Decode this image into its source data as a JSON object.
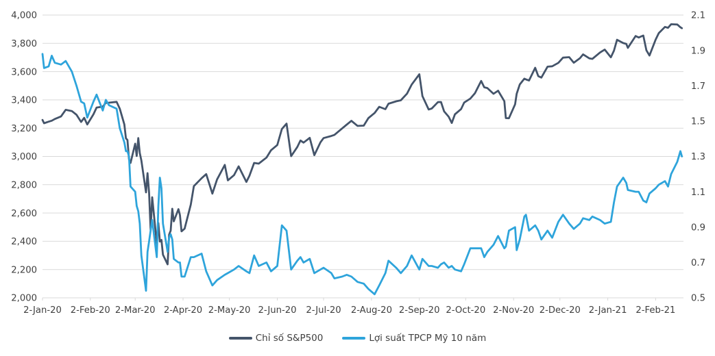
{
  "chart_data": {
    "type": "line",
    "title": "",
    "grid": true,
    "legend_position": "bottom",
    "background_color": "#FFFFFF",
    "grid_color": "#D9D9D9",
    "text_color": "#404040",
    "left_axis": {
      "min": 2000,
      "max": 4000,
      "step": 200,
      "labels": [
        "4,000",
        "3,800",
        "3,600",
        "3,400",
        "3,200",
        "3,000",
        "2,800",
        "2,600",
        "2,400",
        "2,200",
        "2,000"
      ]
    },
    "right_axis": {
      "min": 0.5,
      "max": 2.1,
      "step": 0.2,
      "labels": [
        "2.1",
        "1.9",
        "1.7",
        "1.5",
        "1.3",
        "1.1",
        "0.9",
        "0.7",
        "0.5"
      ]
    },
    "x_axis": {
      "start_date": "2020-01-02",
      "end_date": "2021-02-20",
      "ticks": [
        {
          "date": "2020-01-02",
          "label": "2-Jan-20"
        },
        {
          "date": "2020-02-02",
          "label": "2-Feb-20"
        },
        {
          "date": "2020-03-02",
          "label": "2-Mar-20"
        },
        {
          "date": "2020-04-02",
          "label": "2-Apr-20"
        },
        {
          "date": "2020-05-02",
          "label": "2-May-20"
        },
        {
          "date": "2020-06-02",
          "label": "2-Jun-20"
        },
        {
          "date": "2020-07-02",
          "label": "2-Jul-20"
        },
        {
          "date": "2020-08-02",
          "label": "2-Aug-20"
        },
        {
          "date": "2020-09-02",
          "label": "2-Sep-20"
        },
        {
          "date": "2020-10-02",
          "label": "2-Oct-20"
        },
        {
          "date": "2020-11-02",
          "label": "2-Nov-20"
        },
        {
          "date": "2020-12-02",
          "label": "2-Dec-20"
        },
        {
          "date": "2021-01-02",
          "label": "2-Jan-21"
        },
        {
          "date": "2021-02-02",
          "label": "2-Feb-21"
        }
      ]
    },
    "dates": [
      "2020-01-02",
      "2020-01-03",
      "2020-01-06",
      "2020-01-08",
      "2020-01-10",
      "2020-01-14",
      "2020-01-17",
      "2020-01-21",
      "2020-01-24",
      "2020-01-27",
      "2020-01-29",
      "2020-01-31",
      "2020-02-04",
      "2020-02-06",
      "2020-02-10",
      "2020-02-12",
      "2020-02-14",
      "2020-02-19",
      "2020-02-21",
      "2020-02-24",
      "2020-02-25",
      "2020-02-26",
      "2020-02-27",
      "2020-02-28",
      "2020-03-02",
      "2020-03-03",
      "2020-03-04",
      "2020-03-05",
      "2020-03-06",
      "2020-03-09",
      "2020-03-10",
      "2020-03-11",
      "2020-03-12",
      "2020-03-13",
      "2020-03-16",
      "2020-03-17",
      "2020-03-18",
      "2020-03-19",
      "2020-03-20",
      "2020-03-23",
      "2020-03-24",
      "2020-03-25",
      "2020-03-26",
      "2020-03-27",
      "2020-03-30",
      "2020-03-31",
      "2020-04-01",
      "2020-04-03",
      "2020-04-07",
      "2020-04-09",
      "2020-04-14",
      "2020-04-17",
      "2020-04-21",
      "2020-04-24",
      "2020-04-29",
      "2020-05-01",
      "2020-05-05",
      "2020-05-08",
      "2020-05-13",
      "2020-05-15",
      "2020-05-18",
      "2020-05-21",
      "2020-05-26",
      "2020-05-29",
      "2020-06-02",
      "2020-06-05",
      "2020-06-08",
      "2020-06-11",
      "2020-06-15",
      "2020-06-17",
      "2020-06-19",
      "2020-06-23",
      "2020-06-26",
      "2020-06-30",
      "2020-07-02",
      "2020-07-07",
      "2020-07-09",
      "2020-07-14",
      "2020-07-17",
      "2020-07-20",
      "2020-07-24",
      "2020-07-28",
      "2020-07-31",
      "2020-08-04",
      "2020-08-07",
      "2020-08-11",
      "2020-08-13",
      "2020-08-18",
      "2020-08-21",
      "2020-08-25",
      "2020-08-28",
      "2020-09-02",
      "2020-09-04",
      "2020-09-08",
      "2020-09-10",
      "2020-09-14",
      "2020-09-16",
      "2020-09-18",
      "2020-09-21",
      "2020-09-23",
      "2020-09-25",
      "2020-09-29",
      "2020-10-01",
      "2020-10-05",
      "2020-10-08",
      "2020-10-12",
      "2020-10-14",
      "2020-10-16",
      "2020-10-20",
      "2020-10-23",
      "2020-10-27",
      "2020-10-28",
      "2020-10-30",
      "2020-11-03",
      "2020-11-04",
      "2020-11-06",
      "2020-11-09",
      "2020-11-10",
      "2020-11-12",
      "2020-11-16",
      "2020-11-18",
      "2020-11-20",
      "2020-11-24",
      "2020-11-27",
      "2020-12-01",
      "2020-12-04",
      "2020-12-08",
      "2020-12-11",
      "2020-12-15",
      "2020-12-17",
      "2020-12-21",
      "2020-12-23",
      "2020-12-28",
      "2020-12-31",
      "2021-01-04",
      "2021-01-06",
      "2021-01-08",
      "2021-01-12",
      "2021-01-14",
      "2021-01-15",
      "2021-01-20",
      "2021-01-22",
      "2021-01-25",
      "2021-01-27",
      "2021-01-29",
      "2021-02-02",
      "2021-02-04",
      "2021-02-08",
      "2021-02-10",
      "2021-02-12",
      "2021-02-16",
      "2021-02-18",
      "2021-02-19"
    ],
    "series": [
      {
        "name": "Chỉ số S&P500",
        "color": "#44546A",
        "axis": "left",
        "values": [
          3258,
          3235,
          3246,
          3253,
          3265,
          3283,
          3330,
          3321,
          3295,
          3244,
          3273,
          3226,
          3298,
          3346,
          3352,
          3379,
          3380,
          3386,
          3338,
          3226,
          3128,
          3116,
          2979,
          2954,
          3090,
          3003,
          3130,
          3024,
          2972,
          2746,
          2882,
          2741,
          2481,
          2711,
          2386,
          2529,
          2398,
          2409,
          2305,
          2237,
          2447,
          2476,
          2630,
          2541,
          2627,
          2585,
          2470,
          2489,
          2659,
          2790,
          2846,
          2875,
          2737,
          2837,
          2940,
          2831,
          2868,
          2930,
          2820,
          2864,
          2954,
          2949,
          2992,
          3044,
          3081,
          3194,
          3232,
          3002,
          3067,
          3113,
          3098,
          3131,
          3009,
          3100,
          3130,
          3145,
          3152,
          3198,
          3225,
          3252,
          3216,
          3218,
          3271,
          3307,
          3351,
          3334,
          3373,
          3390,
          3397,
          3444,
          3508,
          3581,
          3427,
          3332,
          3339,
          3384,
          3385,
          3319,
          3281,
          3237,
          3298,
          3335,
          3381,
          3409,
          3447,
          3534,
          3489,
          3484,
          3443,
          3465,
          3391,
          3271,
          3270,
          3369,
          3443,
          3509,
          3550,
          3545,
          3537,
          3627,
          3568,
          3558,
          3635,
          3638,
          3662,
          3699,
          3702,
          3663,
          3695,
          3722,
          3694,
          3690,
          3735,
          3756,
          3701,
          3748,
          3825,
          3802,
          3796,
          3768,
          3852,
          3841,
          3855,
          3751,
          3714,
          3826,
          3872,
          3916,
          3910,
          3935,
          3933,
          3914,
          3907
        ]
      },
      {
        "name": "Lợi suất TPCP Mỹ 10 năm",
        "color": "#2EA4DB",
        "axis": "right",
        "values": [
          1.88,
          1.8,
          1.81,
          1.87,
          1.83,
          1.82,
          1.84,
          1.78,
          1.7,
          1.61,
          1.6,
          1.52,
          1.61,
          1.65,
          1.56,
          1.62,
          1.59,
          1.57,
          1.46,
          1.38,
          1.33,
          1.33,
          1.3,
          1.13,
          1.1,
          1.02,
          0.99,
          0.92,
          0.74,
          0.54,
          0.76,
          0.82,
          0.88,
          0.94,
          0.73,
          1.02,
          1.18,
          1.12,
          0.92,
          0.76,
          0.84,
          0.86,
          0.83,
          0.72,
          0.7,
          0.7,
          0.62,
          0.62,
          0.73,
          0.73,
          0.75,
          0.65,
          0.57,
          0.6,
          0.63,
          0.64,
          0.66,
          0.68,
          0.65,
          0.64,
          0.74,
          0.68,
          0.7,
          0.65,
          0.68,
          0.91,
          0.88,
          0.66,
          0.71,
          0.73,
          0.7,
          0.72,
          0.64,
          0.66,
          0.67,
          0.64,
          0.61,
          0.62,
          0.63,
          0.62,
          0.59,
          0.58,
          0.55,
          0.52,
          0.57,
          0.64,
          0.71,
          0.67,
          0.64,
          0.68,
          0.74,
          0.66,
          0.72,
          0.68,
          0.68,
          0.67,
          0.69,
          0.7,
          0.67,
          0.68,
          0.66,
          0.65,
          0.69,
          0.78,
          0.78,
          0.78,
          0.73,
          0.76,
          0.8,
          0.85,
          0.78,
          0.79,
          0.88,
          0.9,
          0.77,
          0.83,
          0.96,
          0.97,
          0.88,
          0.91,
          0.88,
          0.83,
          0.88,
          0.84,
          0.93,
          0.97,
          0.92,
          0.89,
          0.92,
          0.95,
          0.94,
          0.96,
          0.94,
          0.92,
          0.93,
          1.04,
          1.13,
          1.18,
          1.15,
          1.11,
          1.1,
          1.1,
          1.05,
          1.04,
          1.09,
          1.12,
          1.14,
          1.16,
          1.13,
          1.2,
          1.27,
          1.33,
          1.3
        ]
      }
    ]
  }
}
